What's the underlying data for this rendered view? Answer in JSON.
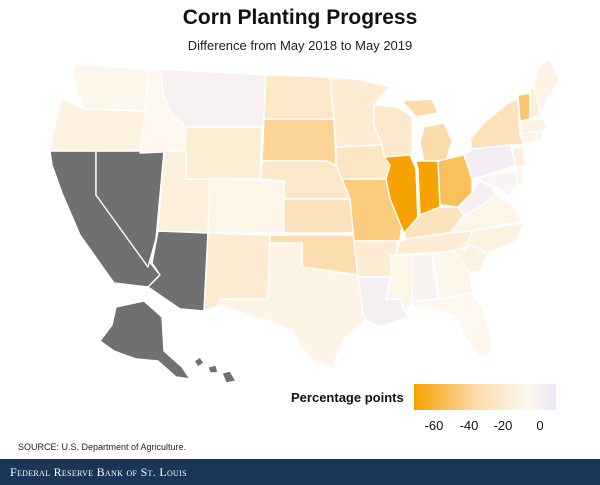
{
  "title": "Corn Planting Progress",
  "subtitle": "Difference from May 2018 to May 2019",
  "legend": {
    "title": "Percentage points",
    "ticks": [
      "-60",
      "-40",
      "-20",
      "0"
    ],
    "colors": {
      "low": "#f7a200",
      "mid": "#fbdcad",
      "zero": "#fdf8f0",
      "high": "#ece6f4"
    }
  },
  "no_data_color": "#707070",
  "source": "SOURCE: U.S. Department of Agriculture.",
  "footer": "Federal Reserve Bank of St. Louis",
  "states": [
    {
      "id": "WA",
      "value": -2
    },
    {
      "id": "OR",
      "value": -6
    },
    {
      "id": "ID",
      "value": -1
    },
    {
      "id": "MT",
      "value": 3
    },
    {
      "id": "WY",
      "value": -10
    },
    {
      "id": "ND",
      "value": -15
    },
    {
      "id": "SD",
      "value": -30
    },
    {
      "id": "NE",
      "value": -14
    },
    {
      "id": "KS",
      "value": -20
    },
    {
      "id": "OK",
      "value": -24
    },
    {
      "id": "TX",
      "value": -4
    },
    {
      "id": "NM",
      "value": -12
    },
    {
      "id": "CO",
      "value": -3
    },
    {
      "id": "UT",
      "value": -7
    },
    {
      "id": "MN",
      "value": -11
    },
    {
      "id": "IA",
      "value": -17
    },
    {
      "id": "MO",
      "value": -36
    },
    {
      "id": "AR",
      "value": -11
    },
    {
      "id": "LA",
      "value": 4
    },
    {
      "id": "WI",
      "value": -13
    },
    {
      "id": "IL",
      "value": -68
    },
    {
      "id": "MI",
      "value": -26
    },
    {
      "id": "IN",
      "value": -68
    },
    {
      "id": "OH",
      "value": -44
    },
    {
      "id": "KY",
      "value": -19
    },
    {
      "id": "TN",
      "value": -11
    },
    {
      "id": "MS",
      "value": -3
    },
    {
      "id": "AL",
      "value": 2
    },
    {
      "id": "GA",
      "value": -2
    },
    {
      "id": "FL",
      "value": -1
    },
    {
      "id": "SC",
      "value": -5
    },
    {
      "id": "NC",
      "value": -6
    },
    {
      "id": "VA",
      "value": -3
    },
    {
      "id": "WV",
      "value": 4
    },
    {
      "id": "PA",
      "value": 5
    },
    {
      "id": "NY",
      "value": -20
    },
    {
      "id": "VT",
      "value": -40
    },
    {
      "id": "NH",
      "value": -8
    },
    {
      "id": "ME",
      "value": -4
    },
    {
      "id": "MA",
      "value": -5
    },
    {
      "id": "CT",
      "value": -5
    },
    {
      "id": "RI",
      "value": -4
    },
    {
      "id": "NJ",
      "value": -7
    },
    {
      "id": "DE",
      "value": -2
    },
    {
      "id": "MD",
      "value": 2
    },
    {
      "id": "CA",
      "value": null
    },
    {
      "id": "NV",
      "value": null
    },
    {
      "id": "AZ",
      "value": null
    },
    {
      "id": "AK",
      "value": null
    },
    {
      "id": "HI",
      "value": null
    }
  ]
}
